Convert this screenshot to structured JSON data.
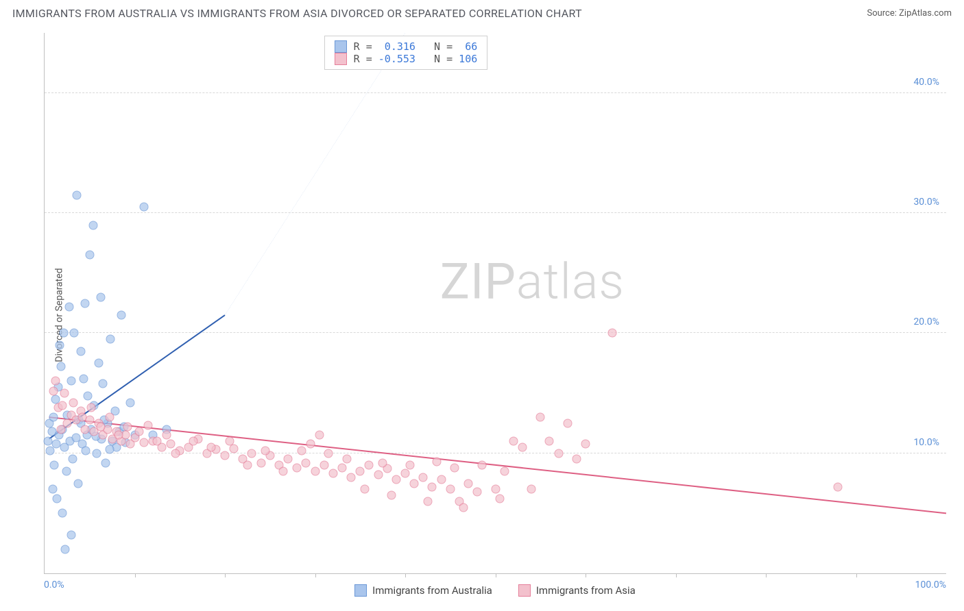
{
  "title": "IMMIGRANTS FROM AUSTRALIA VS IMMIGRANTS FROM ASIA DIVORCED OR SEPARATED CORRELATION CHART",
  "source_label": "Source: ZipAtlas.com",
  "ylabel": "Divorced or Separated",
  "watermark": {
    "bold": "ZIP",
    "thin": "atlas"
  },
  "chart": {
    "type": "scatter",
    "background_color": "#ffffff",
    "grid_color": "#d8d8d8",
    "axis_color": "#bfbfbf",
    "xlim": [
      0,
      100
    ],
    "ylim": [
      0,
      45
    ],
    "x_min_label": "0.0%",
    "x_max_label": "100.0%",
    "x_label_color": "#5a8fd6",
    "y_ticks": [
      10,
      20,
      30,
      40
    ],
    "y_tick_labels": [
      "10.0%",
      "20.0%",
      "30.0%",
      "40.0%"
    ],
    "y_tick_color": "#5a8fd6",
    "x_minor_ticks": [
      10,
      20,
      30,
      40,
      50,
      60,
      70,
      80,
      90
    ],
    "marker_radius": 6.5,
    "marker_stroke_width": 1.2,
    "marker_fill_opacity": 0.35,
    "axis_label_fontsize": 14,
    "title_fontsize": 16
  },
  "correlation_box": {
    "left_pct": 31,
    "rows": [
      {
        "swatch_fill": "#a9c5ec",
        "swatch_stroke": "#6a97d6",
        "r_label": "R =",
        "r_value": "0.316",
        "n_label": "N =",
        "n_value": "66",
        "value_color": "#3b78d8"
      },
      {
        "swatch_fill": "#f3c1cd",
        "swatch_stroke": "#e57f9a",
        "r_label": "R =",
        "r_value": "-0.553",
        "n_label": "N =",
        "n_value": "106",
        "value_color": "#3b78d8"
      }
    ]
  },
  "series": [
    {
      "name": "Immigrants from Australia",
      "legend_label": "Immigrants from Australia",
      "fill": "#a9c5ec",
      "stroke": "#6a97d6",
      "line_color": "#2f5fb0",
      "line_width": 2,
      "dash_color": "#9db8e0",
      "trend": {
        "x1": 0.5,
        "y1": 11.2,
        "x2_solid": 20,
        "y2_solid": 21.5,
        "x2_dash": 40,
        "y2_dash": 45
      },
      "points": [
        [
          0.4,
          11.0
        ],
        [
          0.5,
          12.5
        ],
        [
          0.6,
          10.2
        ],
        [
          0.8,
          11.8
        ],
        [
          1.0,
          13.0
        ],
        [
          1.1,
          9.0
        ],
        [
          1.2,
          14.5
        ],
        [
          1.3,
          10.8
        ],
        [
          1.5,
          15.5
        ],
        [
          1.6,
          11.5
        ],
        [
          1.8,
          17.2
        ],
        [
          2.0,
          12.0
        ],
        [
          2.1,
          20.0
        ],
        [
          2.2,
          10.5
        ],
        [
          2.4,
          8.5
        ],
        [
          2.5,
          13.2
        ],
        [
          2.7,
          22.2
        ],
        [
          2.8,
          11.0
        ],
        [
          3.0,
          16.0
        ],
        [
          3.1,
          9.5
        ],
        [
          3.3,
          20.0
        ],
        [
          3.5,
          11.3
        ],
        [
          3.7,
          7.5
        ],
        [
          3.8,
          12.8
        ],
        [
          4.0,
          18.5
        ],
        [
          4.2,
          10.8
        ],
        [
          4.5,
          22.5
        ],
        [
          4.7,
          11.5
        ],
        [
          5.0,
          26.5
        ],
        [
          5.2,
          12.0
        ],
        [
          5.5,
          14.0
        ],
        [
          5.8,
          10.0
        ],
        [
          6.0,
          17.5
        ],
        [
          6.3,
          11.2
        ],
        [
          6.5,
          15.8
        ],
        [
          6.8,
          9.2
        ],
        [
          7.0,
          12.5
        ],
        [
          7.3,
          19.5
        ],
        [
          7.5,
          11.0
        ],
        [
          7.8,
          13.5
        ],
        [
          8.0,
          10.5
        ],
        [
          8.3,
          11.8
        ],
        [
          8.5,
          21.5
        ],
        [
          8.8,
          12.2
        ],
        [
          9.0,
          10.9
        ],
        [
          9.5,
          14.2
        ],
        [
          10.0,
          11.5
        ],
        [
          3.0,
          3.2
        ],
        [
          0.9,
          7.0
        ],
        [
          1.4,
          6.2
        ],
        [
          2.0,
          5.0
        ],
        [
          4.3,
          16.2
        ],
        [
          4.8,
          14.8
        ],
        [
          5.4,
          29.0
        ],
        [
          6.2,
          23.0
        ],
        [
          1.7,
          19.0
        ],
        [
          11.0,
          30.5
        ],
        [
          3.6,
          31.5
        ],
        [
          4.0,
          12.5
        ],
        [
          4.6,
          10.2
        ],
        [
          5.7,
          11.4
        ],
        [
          6.6,
          12.8
        ],
        [
          7.2,
          10.3
        ],
        [
          12.0,
          11.5
        ],
        [
          13.5,
          12.0
        ],
        [
          2.3,
          2.0
        ]
      ]
    },
    {
      "name": "Immigrants from Asia",
      "legend_label": "Immigrants from Asia",
      "fill": "#f3c1cd",
      "stroke": "#e57f9a",
      "line_color": "#de5f83",
      "line_width": 2,
      "trend": {
        "x1": 0.5,
        "y1": 13.0,
        "x2_solid": 100,
        "y2_solid": 5.0
      },
      "points": [
        [
          1.0,
          15.2
        ],
        [
          1.5,
          13.8
        ],
        [
          2.0,
          14.0
        ],
        [
          2.5,
          12.5
        ],
        [
          3.0,
          13.2
        ],
        [
          3.5,
          12.8
        ],
        [
          4.0,
          13.5
        ],
        [
          4.5,
          12.0
        ],
        [
          5.0,
          12.8
        ],
        [
          5.5,
          11.8
        ],
        [
          6.0,
          12.5
        ],
        [
          6.5,
          11.5
        ],
        [
          7.0,
          12.0
        ],
        [
          7.5,
          11.2
        ],
        [
          8.0,
          11.8
        ],
        [
          8.5,
          11.0
        ],
        [
          9.0,
          11.5
        ],
        [
          9.5,
          10.8
        ],
        [
          10.0,
          11.3
        ],
        [
          11.0,
          10.9
        ],
        [
          12.0,
          11.0
        ],
        [
          13.0,
          10.5
        ],
        [
          14.0,
          10.8
        ],
        [
          15.0,
          10.2
        ],
        [
          16.0,
          10.5
        ],
        [
          17.0,
          11.2
        ],
        [
          18.0,
          10.0
        ],
        [
          19.0,
          10.3
        ],
        [
          20.0,
          9.8
        ],
        [
          21.0,
          10.4
        ],
        [
          22.0,
          9.5
        ],
        [
          23.0,
          10.0
        ],
        [
          24.0,
          9.2
        ],
        [
          25.0,
          9.8
        ],
        [
          26.0,
          9.0
        ],
        [
          27.0,
          9.5
        ],
        [
          28.0,
          8.8
        ],
        [
          29.0,
          9.2
        ],
        [
          30.0,
          8.5
        ],
        [
          31.0,
          9.0
        ],
        [
          32.0,
          8.3
        ],
        [
          33.0,
          8.8
        ],
        [
          34.0,
          8.0
        ],
        [
          35.0,
          8.5
        ],
        [
          36.0,
          9.0
        ],
        [
          37.0,
          8.2
        ],
        [
          38.0,
          8.7
        ],
        [
          39.0,
          7.8
        ],
        [
          40.0,
          8.3
        ],
        [
          41.0,
          7.5
        ],
        [
          42.0,
          8.0
        ],
        [
          43.0,
          7.2
        ],
        [
          44.0,
          7.8
        ],
        [
          45.0,
          7.0
        ],
        [
          46.0,
          6.0
        ],
        [
          47.0,
          7.5
        ],
        [
          48.0,
          6.8
        ],
        [
          50.0,
          7.0
        ],
        [
          52.0,
          11.0
        ],
        [
          53.0,
          10.5
        ],
        [
          55.0,
          13.0
        ],
        [
          57.0,
          10.0
        ],
        [
          58.0,
          12.5
        ],
        [
          60.0,
          10.8
        ],
        [
          63.0,
          20.0
        ],
        [
          28.5,
          10.2
        ],
        [
          29.5,
          10.8
        ],
        [
          30.5,
          11.5
        ],
        [
          31.5,
          10.0
        ],
        [
          33.5,
          9.5
        ],
        [
          35.5,
          7.0
        ],
        [
          37.5,
          9.2
        ],
        [
          38.5,
          6.5
        ],
        [
          40.5,
          9.0
        ],
        [
          42.5,
          6.0
        ],
        [
          43.5,
          9.3
        ],
        [
          45.5,
          8.8
        ],
        [
          46.5,
          5.5
        ],
        [
          48.5,
          9.0
        ],
        [
          50.5,
          6.2
        ],
        [
          51.0,
          8.5
        ],
        [
          54.0,
          7.0
        ],
        [
          56.0,
          11.0
        ],
        [
          59.0,
          9.5
        ],
        [
          1.2,
          16.0
        ],
        [
          2.2,
          15.0
        ],
        [
          3.2,
          14.2
        ],
        [
          4.2,
          13.0
        ],
        [
          5.2,
          13.8
        ],
        [
          6.2,
          12.2
        ],
        [
          7.2,
          13.0
        ],
        [
          8.2,
          11.5
        ],
        [
          9.2,
          12.2
        ],
        [
          10.5,
          11.8
        ],
        [
          11.5,
          12.3
        ],
        [
          12.5,
          11.0
        ],
        [
          13.5,
          11.5
        ],
        [
          14.5,
          10.0
        ],
        [
          16.5,
          11.0
        ],
        [
          18.5,
          10.5
        ],
        [
          20.5,
          11.0
        ],
        [
          22.5,
          9.0
        ],
        [
          24.5,
          10.2
        ],
        [
          26.5,
          8.5
        ],
        [
          88.0,
          7.2
        ],
        [
          1.8,
          12.0
        ]
      ]
    }
  ]
}
